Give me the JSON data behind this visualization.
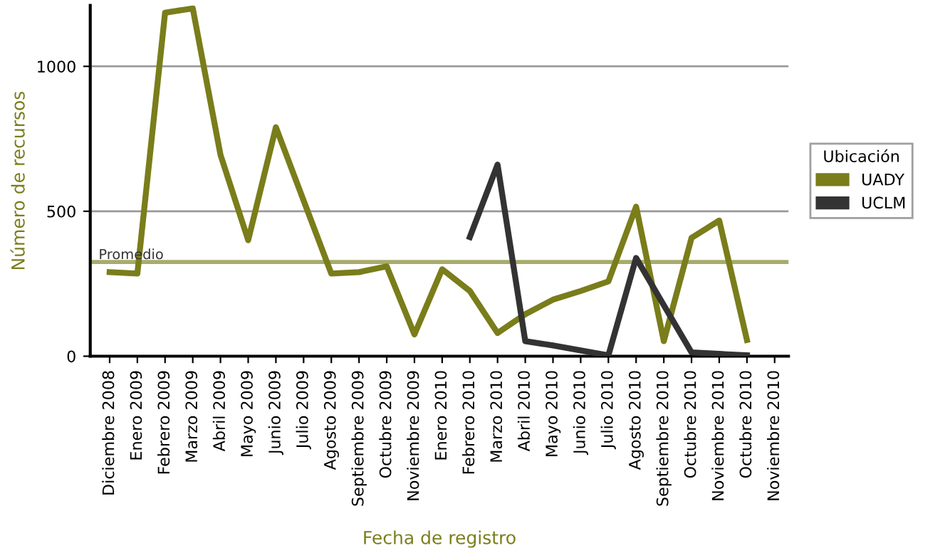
{
  "chart_data": {
    "type": "line",
    "xlabel": "Fecha de registro",
    "ylabel": "Número de recursos",
    "legend_title": "Ubicación",
    "categories": [
      "Diciembre 2008",
      "Enero 2009",
      "Febrero 2009",
      "Marzo 2009",
      "Abril 2009",
      "Mayo 2009",
      "Junio 2009",
      "Julio 2009",
      "Agosto 2009",
      "Septiembre 2009",
      "Octubre 2009",
      "Noviembre 2009",
      "Enero 2010",
      "Febrero 2010",
      "Marzo 2010",
      "Abril 2010",
      "Mayo 2010",
      "Junio 2010",
      "Julio 2010",
      "Agosto 2010",
      "Septiembre 2010",
      "Octubre 2010",
      "Noviembre 2010",
      "Octubre 2010",
      "Noviembre 2010"
    ],
    "series": [
      {
        "name": "UADY",
        "color": "#7a7d1a",
        "values": [
          290,
          285,
          1185,
          1200,
          695,
          400,
          790,
          537,
          285,
          290,
          310,
          75,
          300,
          225,
          80,
          145,
          195,
          225,
          258,
          516,
          52,
          408,
          468,
          56,
          null
        ]
      },
      {
        "name": "UCLM",
        "color": "#333333",
        "values": [
          null,
          null,
          null,
          null,
          null,
          null,
          null,
          null,
          null,
          null,
          null,
          null,
          null,
          411,
          661,
          52,
          37,
          20,
          3,
          339,
          176,
          13,
          8,
          3,
          null
        ]
      }
    ],
    "ylim": [
      0,
      1210
    ],
    "yticks": [
      0,
      500,
      1000
    ],
    "grid": "y",
    "legend": "right",
    "ref_lines": [
      {
        "axis": "y",
        "value": 325,
        "label": "Promedio",
        "color": "#a8ab6b"
      }
    ]
  }
}
